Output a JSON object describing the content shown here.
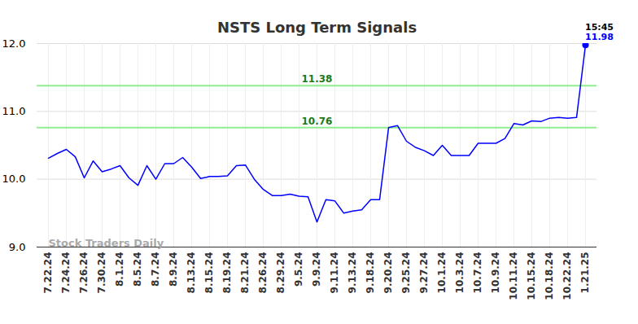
{
  "chart_data": {
    "type": "line",
    "title": "NSTS Long Term Signals",
    "categories": [
      "7.22.24",
      null,
      "7.24.24",
      null,
      "7.26.24",
      null,
      "7.30.24",
      null,
      "8.1.24",
      null,
      "8.5.24",
      null,
      "8.7.24",
      null,
      "8.9.24",
      null,
      "8.13.24",
      null,
      "8.15.24",
      null,
      "8.19.24",
      null,
      "8.21.24",
      null,
      "8.26.24",
      null,
      "8.29.24",
      null,
      "9.5.24",
      null,
      "9.9.24",
      null,
      "9.11.24",
      null,
      "9.13.24",
      null,
      "9.18.24",
      null,
      "9.20.24",
      null,
      "9.25.24",
      null,
      "9.27.24",
      null,
      "10.1.24",
      null,
      "10.3.24",
      null,
      "10.7.24",
      null,
      "10.9.24",
      null,
      "10.11.24",
      null,
      "10.15.24",
      null,
      "10.18.24",
      null,
      "10.22.24",
      null,
      "1.21.25"
    ],
    "values": [
      10.31,
      10.38,
      10.44,
      10.33,
      10.02,
      10.27,
      10.11,
      10.15,
      10.2,
      10.02,
      9.91,
      10.2,
      10.0,
      10.23,
      10.23,
      10.32,
      10.18,
      10.01,
      10.04,
      10.04,
      10.05,
      10.2,
      10.21,
      10.0,
      9.85,
      9.76,
      9.76,
      9.78,
      9.75,
      9.74,
      9.37,
      9.7,
      9.68,
      9.5,
      9.53,
      9.55,
      9.7,
      9.7,
      10.76,
      10.79,
      10.56,
      10.47,
      10.42,
      10.35,
      10.5,
      10.35,
      10.35,
      10.35,
      10.53,
      10.53,
      10.53,
      10.6,
      10.82,
      10.8,
      10.86,
      10.85,
      10.9,
      10.91,
      10.9,
      10.91,
      11.98
    ],
    "color": "#0000ff",
    "ylim": [
      9,
      12
    ],
    "yticks": [
      9,
      10,
      11,
      12
    ],
    "grid": true,
    "reference_lines": [
      11.38,
      10.76
    ],
    "last_time": "15:45",
    "watermark": "Stock Traders Daily"
  }
}
